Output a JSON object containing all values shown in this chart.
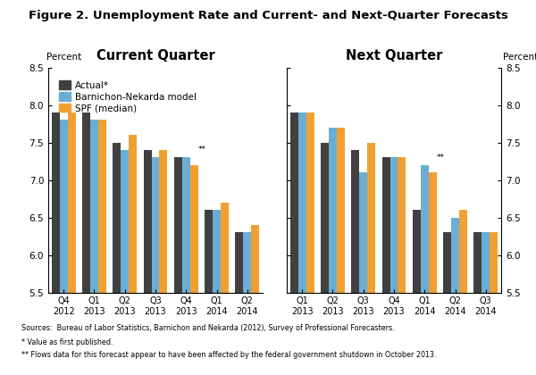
{
  "title": "Figure 2. Unemployment Rate and Current- and Next-Quarter Forecasts",
  "left_title": "Current Quarter",
  "right_title": "Next Quarter",
  "ylabel": "Percent",
  "ylim": [
    5.5,
    8.5
  ],
  "yticks": [
    5.5,
    6.0,
    6.5,
    7.0,
    7.5,
    8.0,
    8.5
  ],
  "left_categories": [
    "Q4\n2012",
    "Q1\n2013",
    "Q2\n2013",
    "Q3\n2013",
    "Q4\n2013",
    "Q1\n2014",
    "Q2\n2014"
  ],
  "left_actual": [
    7.9,
    7.9,
    7.5,
    7.4,
    7.3,
    6.6,
    6.3
  ],
  "left_bn": [
    7.8,
    7.8,
    7.4,
    7.3,
    7.3,
    6.6,
    6.3
  ],
  "left_spf": [
    7.9,
    7.8,
    7.6,
    7.4,
    7.2,
    6.7,
    6.4
  ],
  "left_star": [
    false,
    false,
    false,
    false,
    true,
    false,
    false
  ],
  "right_categories": [
    "Q1\n2013",
    "Q2\n2013",
    "Q3\n2013",
    "Q4\n2013",
    "Q1\n2014",
    "Q2\n2014",
    "Q3\n2014"
  ],
  "right_actual": [
    7.9,
    7.5,
    7.4,
    7.3,
    6.6,
    6.3,
    6.3
  ],
  "right_bn": [
    7.9,
    7.7,
    7.1,
    7.3,
    7.2,
    6.5,
    6.3
  ],
  "right_spf": [
    7.9,
    7.7,
    7.5,
    7.3,
    7.1,
    6.6,
    6.3
  ],
  "right_star": [
    false,
    false,
    false,
    false,
    true,
    false,
    false
  ],
  "color_actual": "#404040",
  "color_bn": "#6aaed6",
  "color_spf": "#f0a030",
  "legend_labels": [
    "Actual*",
    "Barnichon-Nekarda model",
    "SPF (median)"
  ],
  "footnote1": "Sources:  Bureau of Labor Statistics, Barnichon and Nekarda (2012), Survey of Professional Forecasters.",
  "footnote2": "* Value as first published.",
  "footnote3": "** Flows data for this forecast appear to have been affected by the federal government shutdown in October 2013."
}
